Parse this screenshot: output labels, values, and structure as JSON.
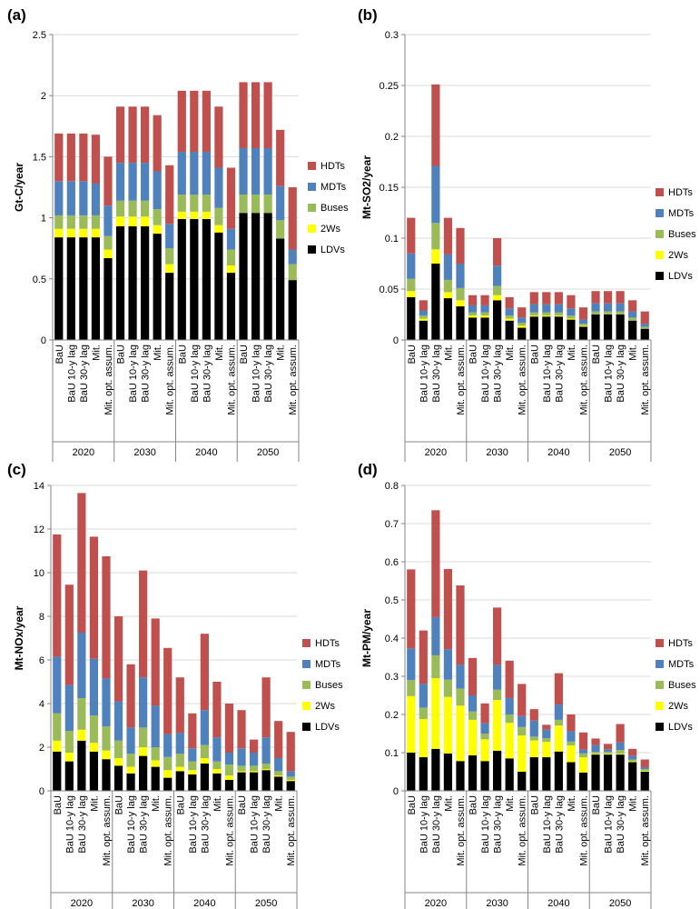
{
  "figure": {
    "scenarios": [
      "BaU",
      "BaU 10-y lag",
      "BaU 30-y lag",
      "Mit.",
      "Mit. opt. assum."
    ],
    "years": [
      "2020",
      "2030",
      "2040",
      "2050"
    ],
    "legend": [
      "HDTs",
      "MDTs",
      "Buses",
      "2Ws",
      "LDVs"
    ],
    "colors": {
      "LDVs": "#000000",
      "2Ws": "#ffff00",
      "Buses": "#9bbb59",
      "MDTs": "#4f81bd",
      "HDTs": "#c0504d"
    }
  },
  "chart_data": [
    {
      "panel": "(a)",
      "type": "bar",
      "stacked": true,
      "ylabel": "Gt-C/year",
      "ylim": [
        0,
        2.5
      ],
      "yticks": [
        "0",
        "0.5",
        "1",
        "1.5",
        "2",
        "2.5"
      ],
      "series": [
        {
          "name": "LDVs",
          "values": [
            0.84,
            0.84,
            0.84,
            0.84,
            0.67,
            0.93,
            0.93,
            0.93,
            0.87,
            0.55,
            0.99,
            0.99,
            0.99,
            0.88,
            0.55,
            1.04,
            1.04,
            1.04,
            0.83,
            0.49
          ]
        },
        {
          "name": "2Ws",
          "values": [
            0.07,
            0.07,
            0.07,
            0.07,
            0.07,
            0.08,
            0.08,
            0.08,
            0.07,
            0.07,
            0.06,
            0.06,
            0.06,
            0.06,
            0.06,
            0.0,
            0.0,
            0.0,
            0.0,
            0.0
          ]
        },
        {
          "name": "Buses",
          "values": [
            0.11,
            0.11,
            0.11,
            0.11,
            0.11,
            0.13,
            0.13,
            0.13,
            0.13,
            0.13,
            0.14,
            0.14,
            0.14,
            0.14,
            0.13,
            0.15,
            0.15,
            0.15,
            0.15,
            0.13
          ]
        },
        {
          "name": "MDTs",
          "values": [
            0.28,
            0.28,
            0.28,
            0.26,
            0.25,
            0.31,
            0.31,
            0.31,
            0.31,
            0.2,
            0.35,
            0.35,
            0.35,
            0.33,
            0.17,
            0.38,
            0.38,
            0.38,
            0.28,
            0.12
          ]
        },
        {
          "name": "HDTs",
          "values": [
            0.39,
            0.39,
            0.39,
            0.4,
            0.4,
            0.46,
            0.46,
            0.46,
            0.46,
            0.48,
            0.5,
            0.5,
            0.5,
            0.5,
            0.5,
            0.54,
            0.54,
            0.54,
            0.46,
            0.51
          ]
        }
      ]
    },
    {
      "panel": "(b)",
      "type": "bar",
      "stacked": true,
      "ylabel": "Mt-SO2/year",
      "ylim": [
        0,
        0.3
      ],
      "yticks": [
        "0",
        "0.05",
        "0.1",
        "0.15",
        "0.2",
        "0.25",
        "0.3"
      ],
      "series": [
        {
          "name": "LDVs",
          "values": [
            0.042,
            0.019,
            0.075,
            0.041,
            0.033,
            0.022,
            0.022,
            0.039,
            0.019,
            0.012,
            0.023,
            0.023,
            0.023,
            0.02,
            0.013,
            0.025,
            0.025,
            0.025,
            0.019,
            0.011
          ]
        },
        {
          "name": "2Ws",
          "values": [
            0.006,
            0.002,
            0.014,
            0.006,
            0.006,
            0.002,
            0.002,
            0.005,
            0.002,
            0.002,
            0.001,
            0.001,
            0.001,
            0.001,
            0.001,
            0.0,
            0.0,
            0.0,
            0.0,
            0.0
          ]
        },
        {
          "name": "Buses",
          "values": [
            0.012,
            0.003,
            0.026,
            0.012,
            0.012,
            0.003,
            0.003,
            0.009,
            0.003,
            0.003,
            0.003,
            0.003,
            0.003,
            0.003,
            0.002,
            0.003,
            0.003,
            0.003,
            0.003,
            0.002
          ]
        },
        {
          "name": "MDTs",
          "values": [
            0.025,
            0.005,
            0.056,
            0.025,
            0.024,
            0.007,
            0.007,
            0.02,
            0.007,
            0.005,
            0.008,
            0.008,
            0.008,
            0.007,
            0.004,
            0.008,
            0.008,
            0.008,
            0.006,
            0.003
          ]
        },
        {
          "name": "HDTs",
          "values": [
            0.035,
            0.01,
            0.08,
            0.036,
            0.035,
            0.01,
            0.01,
            0.027,
            0.011,
            0.01,
            0.012,
            0.012,
            0.012,
            0.013,
            0.012,
            0.012,
            0.012,
            0.012,
            0.011,
            0.012
          ]
        }
      ]
    },
    {
      "panel": "(c)",
      "type": "bar",
      "stacked": true,
      "ylabel": "Mt-NOx/year",
      "ylim": [
        0,
        14
      ],
      "yticks": [
        "0",
        "2",
        "4",
        "6",
        "8",
        "10",
        "12",
        "14"
      ],
      "series": [
        {
          "name": "LDVs",
          "values": [
            1.8,
            1.35,
            2.3,
            1.8,
            1.45,
            1.15,
            0.8,
            1.6,
            1.1,
            0.6,
            0.9,
            0.75,
            1.25,
            0.8,
            0.5,
            0.85,
            0.85,
            0.95,
            0.65,
            0.45
          ]
        },
        {
          "name": "2Ws",
          "values": [
            0.5,
            0.4,
            0.5,
            0.4,
            0.4,
            0.35,
            0.3,
            0.4,
            0.3,
            0.35,
            0.2,
            0.2,
            0.25,
            0.2,
            0.2,
            0.05,
            0.05,
            0.05,
            0.05,
            0.05
          ]
        },
        {
          "name": "Buses",
          "values": [
            1.25,
            1.0,
            1.45,
            1.25,
            1.1,
            0.8,
            0.6,
            0.9,
            0.6,
            0.6,
            0.6,
            0.4,
            0.6,
            0.35,
            0.5,
            0.25,
            0.25,
            0.25,
            0.2,
            0.15
          ]
        },
        {
          "name": "MDTs",
          "values": [
            2.6,
            2.1,
            3.0,
            2.6,
            2.2,
            1.8,
            1.2,
            2.3,
            1.9,
            1.05,
            0.95,
            0.6,
            1.6,
            1.1,
            0.55,
            0.8,
            0.6,
            1.2,
            0.6,
            0.25
          ]
        },
        {
          "name": "HDTs",
          "values": [
            5.6,
            4.6,
            6.4,
            5.6,
            5.6,
            3.9,
            2.9,
            4.9,
            4.0,
            3.95,
            2.55,
            1.6,
            3.5,
            2.55,
            2.25,
            1.75,
            0.6,
            2.75,
            1.7,
            1.8
          ]
        }
      ]
    },
    {
      "panel": "(d)",
      "type": "bar",
      "stacked": true,
      "ylabel": "Mt-PM/year",
      "ylim": [
        0,
        0.8
      ],
      "yticks": [
        "0",
        "0.1",
        "0.2",
        "0.3",
        "0.4",
        "0.5",
        "0.6",
        "0.7",
        "0.8"
      ],
      "series": [
        {
          "name": "LDVs",
          "values": [
            0.1,
            0.088,
            0.11,
            0.098,
            0.078,
            0.093,
            0.078,
            0.105,
            0.085,
            0.05,
            0.088,
            0.088,
            0.103,
            0.075,
            0.048,
            0.095,
            0.095,
            0.095,
            0.075,
            0.05
          ]
        },
        {
          "name": "2Ws",
          "values": [
            0.148,
            0.1,
            0.185,
            0.148,
            0.145,
            0.093,
            0.057,
            0.133,
            0.093,
            0.095,
            0.044,
            0.04,
            0.068,
            0.044,
            0.04,
            0.002,
            0.002,
            0.002,
            0.002,
            0.002
          ]
        },
        {
          "name": "Buses",
          "values": [
            0.042,
            0.03,
            0.06,
            0.045,
            0.045,
            0.022,
            0.015,
            0.027,
            0.022,
            0.022,
            0.01,
            0.01,
            0.015,
            0.01,
            0.01,
            0.005,
            0.005,
            0.01,
            0.005,
            0.005
          ]
        },
        {
          "name": "MDTs",
          "values": [
            0.083,
            0.062,
            0.1,
            0.08,
            0.062,
            0.042,
            0.027,
            0.065,
            0.043,
            0.029,
            0.042,
            0.022,
            0.04,
            0.027,
            0.01,
            0.018,
            0.007,
            0.02,
            0.01,
            0.005
          ]
        },
        {
          "name": "HDTs",
          "values": [
            0.207,
            0.14,
            0.28,
            0.21,
            0.208,
            0.098,
            0.052,
            0.15,
            0.098,
            0.084,
            0.03,
            0.013,
            0.082,
            0.044,
            0.045,
            0.017,
            0.014,
            0.048,
            0.018,
            0.02
          ]
        }
      ]
    }
  ]
}
